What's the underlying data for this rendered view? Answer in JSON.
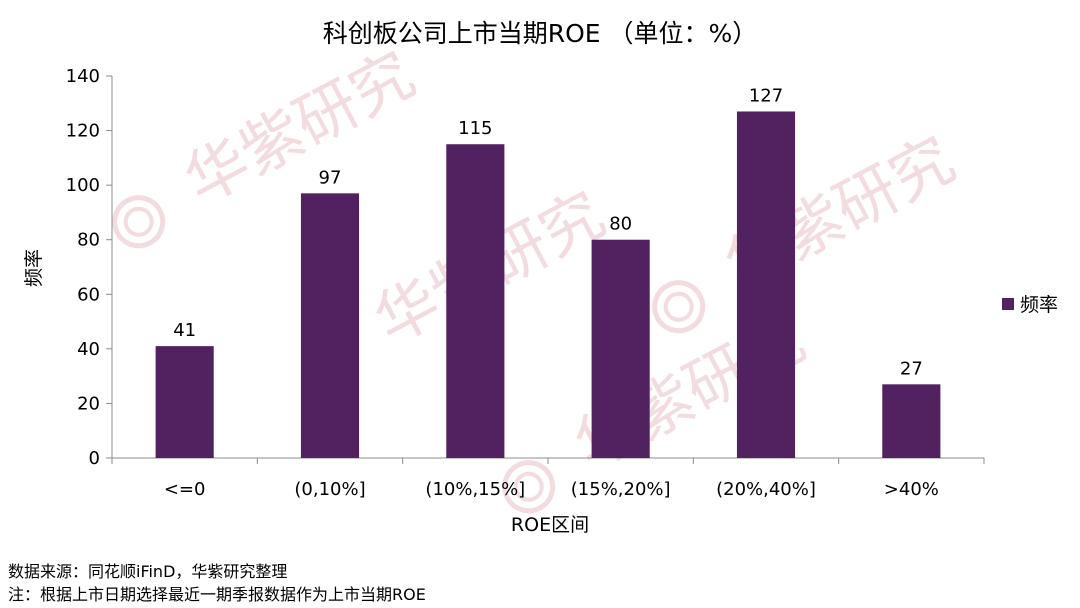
{
  "chart_data": {
    "type": "bar",
    "title": "科创板公司上市当期ROE （单位：%）",
    "xlabel": "ROE区间",
    "ylabel": "频率",
    "categories": [
      "<=0",
      "(0,10%]",
      "(10%,15%]",
      "(15%,20%]",
      "(20%,40%]",
      ">40%"
    ],
    "series": [
      {
        "name": "频率",
        "values": [
          41,
          97,
          115,
          80,
          127,
          27
        ],
        "color": "#522260"
      }
    ],
    "ylim": [
      0,
      140
    ],
    "yticks": [
      0,
      20,
      40,
      60,
      80,
      100,
      120,
      140
    ],
    "grid": false,
    "legend_position": "right",
    "data_labels": true
  },
  "footer": {
    "source": "数据来源：同花顺iFinD，华紫研究整理",
    "note": "注：根据上市日期选择最近一期季报数据作为上市当期ROE"
  },
  "watermark": {
    "text": "华紫研究",
    "color": "#f3dcdf"
  }
}
